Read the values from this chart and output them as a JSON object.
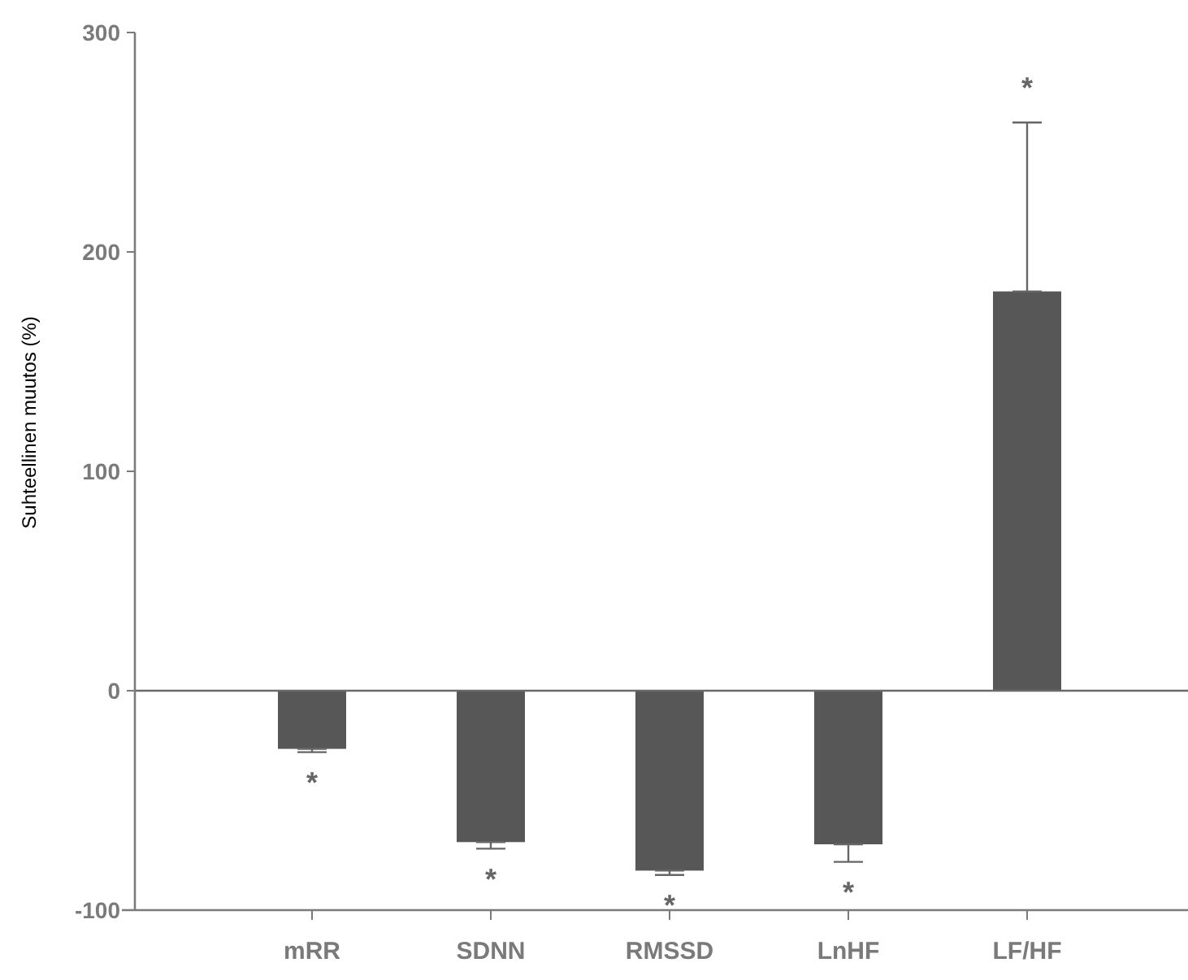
{
  "chart_data": {
    "type": "bar",
    "ylabel": "Suhteellinen muutos (%)",
    "categories": [
      "mRR",
      "SDNN",
      "RMSSD",
      "LnHF",
      "LF/HF"
    ],
    "values": [
      -26.5,
      -69,
      -82,
      -70,
      182
    ],
    "errors": [
      [
        -28,
        -26.5
      ],
      [
        -72,
        -69
      ],
      [
        -84,
        -82
      ],
      [
        -78,
        -70
      ],
      [
        182,
        259
      ]
    ],
    "color": "#575757",
    "ylim": [
      -100,
      300
    ],
    "yticks": [
      -100,
      0,
      100,
      200,
      300
    ],
    "ref_lines": [
      {
        "axis": "y",
        "value": 0,
        "color": "#6a6a6a"
      }
    ],
    "annotations": [
      "*",
      "*",
      "*",
      "*",
      "*"
    ]
  }
}
